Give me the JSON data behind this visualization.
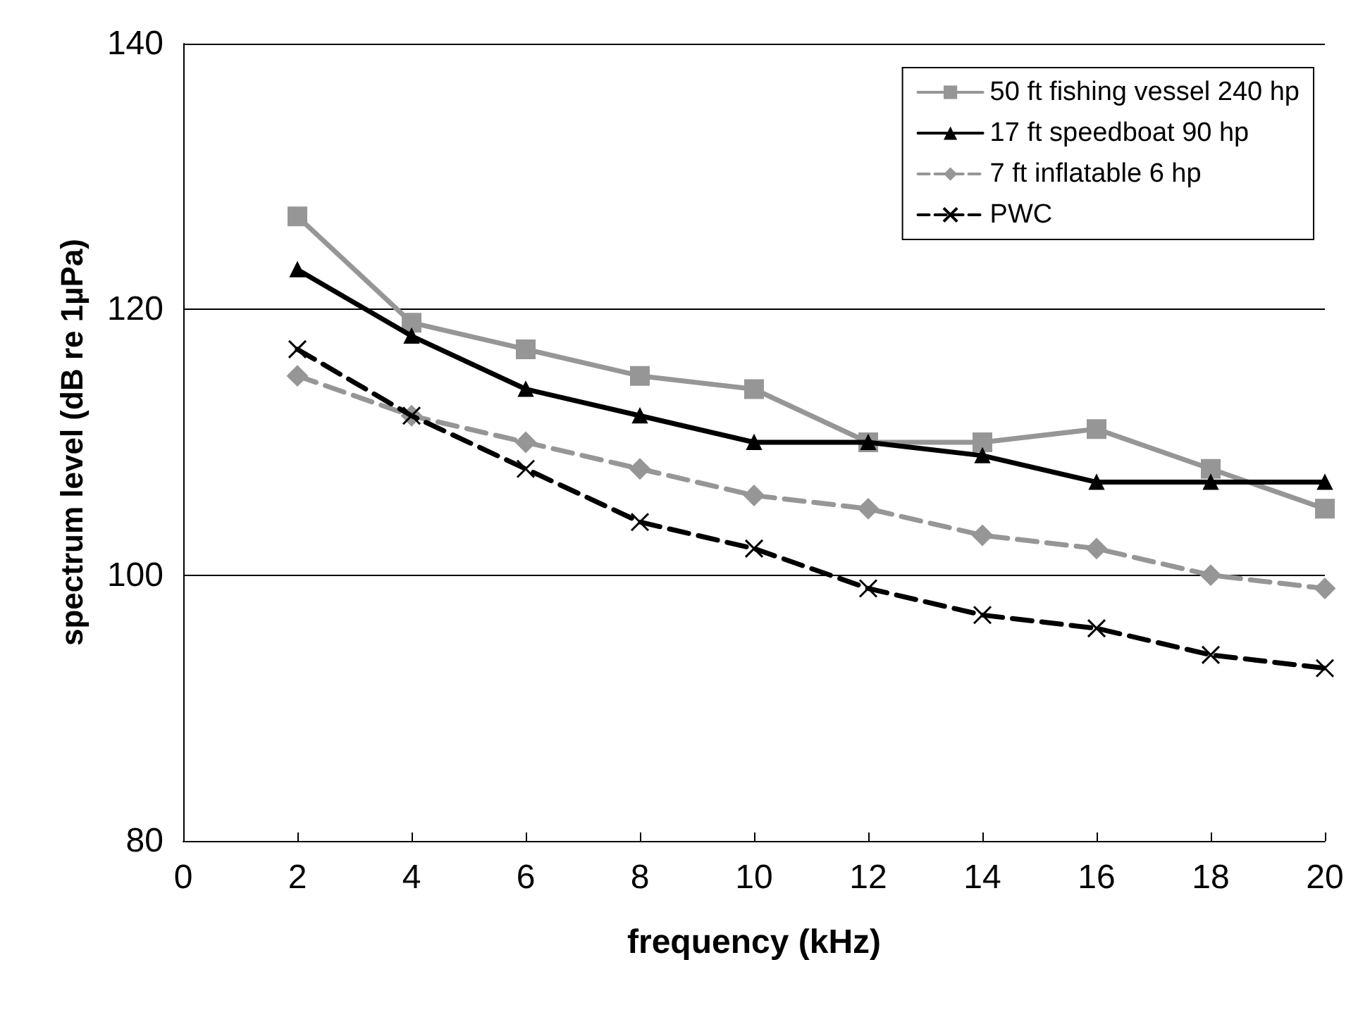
{
  "chart_data": {
    "type": "line",
    "xlabel": "frequency (kHz)",
    "ylabel": "spectrum level (dB re 1µPa)",
    "x": [
      2,
      4,
      6,
      8,
      10,
      12,
      14,
      16,
      18,
      20
    ],
    "xlim": [
      0,
      20
    ],
    "xticks": [
      0,
      2,
      4,
      6,
      8,
      10,
      12,
      14,
      16,
      18,
      20
    ],
    "ylim": [
      80,
      140
    ],
    "yticks": [
      80,
      100,
      120,
      140
    ],
    "grid": "y",
    "legend": "top right",
    "series": [
      {
        "name": "50 ft fishing vessel 240 hp",
        "color": "#969696",
        "marker": "square",
        "line_style": "solid",
        "values": [
          127,
          119,
          117,
          115,
          114,
          110,
          110,
          111,
          108,
          105
        ]
      },
      {
        "name": "17 ft speedboat 90 hp",
        "color": "#000000",
        "marker": "triangle",
        "line_style": "solid",
        "values": [
          123,
          118,
          114,
          112,
          110,
          110,
          109,
          107,
          107,
          107
        ]
      },
      {
        "name": "7 ft inflatable 6 hp",
        "color": "#969696",
        "marker": "diamond",
        "line_style": "dashed",
        "values": [
          115,
          112,
          110,
          108,
          106,
          105,
          103,
          102,
          100,
          99
        ]
      },
      {
        "name": "PWC",
        "color": "#000000",
        "marker": "cross",
        "line_style": "dashed",
        "values": [
          117,
          112,
          108,
          104,
          102,
          99,
          97,
          96,
          94,
          93
        ]
      }
    ]
  }
}
